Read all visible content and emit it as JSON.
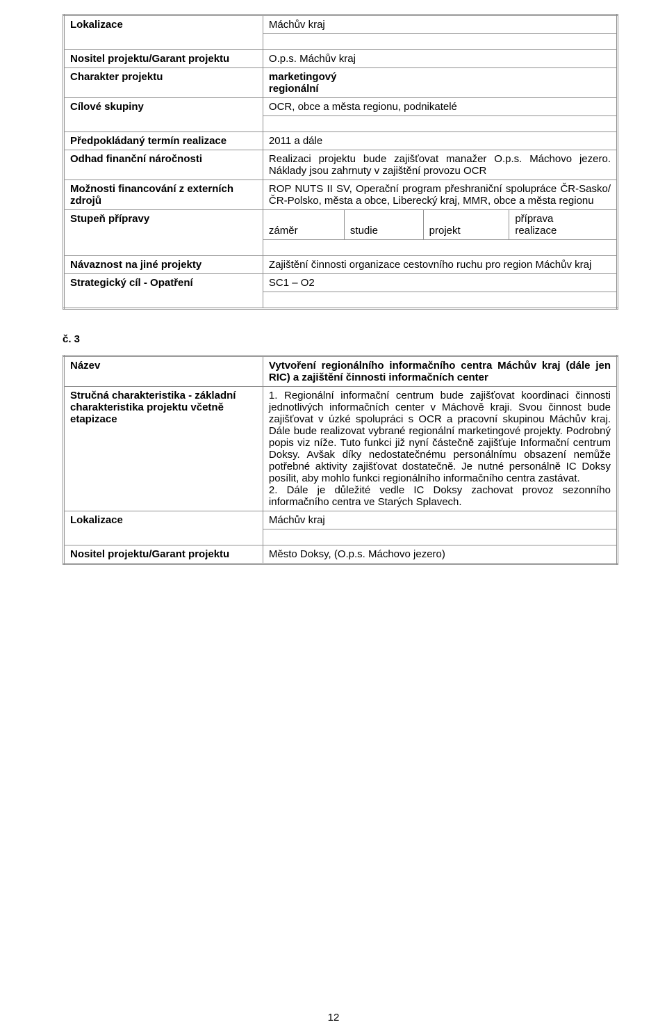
{
  "table1": {
    "rows": [
      {
        "label": "Lokalizace",
        "value": "Máchův kraj"
      },
      {
        "label": "Nositel projektu/Garant projektu",
        "value": "O.p.s. Máchův kraj"
      },
      {
        "label": "Charakter projektu",
        "value": "marketingový\nregionální"
      },
      {
        "label": "Cílové skupiny",
        "value": "OCR, obce a města regionu, podnikatelé"
      },
      {
        "label": "Předpokládaný termín realizace",
        "value": "2011 a dále"
      },
      {
        "label": "Odhad finanční náročnosti",
        "value": "Realizaci projektu bude zajišťovat manažer O.p.s. Máchovo jezero. Náklady jsou zahrnuty v zajištění provozu OCR"
      },
      {
        "label": "Možnosti financování z externích zdrojů",
        "value": "ROP NUTS II SV, Operační program přeshraniční spolupráce ČR-Sasko/ČR-Polsko, města a obce, Liberecký kraj, MMR, obce a města regionu"
      },
      {
        "label": "Stupeň přípravy",
        "columns": [
          "záměr",
          "studie",
          "projekt",
          "příprava\nrealizace"
        ]
      },
      {
        "label": "Návaznost na jiné projekty",
        "value": "Zajištění činnosti organizace cestovního ruchu pro region Máchův kraj"
      },
      {
        "label": "Strategický cíl - Opatření",
        "value": "SC1 – O2"
      }
    ]
  },
  "sectionNumber": "č. 3",
  "table2": {
    "rows": [
      {
        "label": "Název",
        "value": "Vytvoření regionálního informačního centra Máchův kraj (dále jen RIC) a zajištění činnosti informačních center",
        "boldValue": true
      },
      {
        "label": "Stručná charakteristika - základní charakteristika projektu včetně etapizace",
        "value": "1. Regionální informační centrum bude zajišťovat koordinaci činnosti jednotlivých informačních center v Máchově kraji. Svou činnost bude zajišťovat v úzké spolupráci s OCR a pracovní skupinou Máchův kraj. Dále bude realizovat vybrané regionální marketingové projekty. Podrobný popis viz níže. Tuto funkci již nyní částečně zajišťuje Informační centrum Doksy. Avšak díky nedostatečnému personálnímu obsazení nemůže potřebné aktivity zajišťovat dostatečně. Je nutné personálně IC Doksy posílit, aby mohlo funkci regionálního informačního centra zastávat.\n2. Dále je důležité vedle IC Doksy zachovat provoz sezonního informačního centra ve Starých Splavech."
      },
      {
        "label": "Lokalizace",
        "value": "Máchův kraj"
      },
      {
        "label": "Nositel projektu/Garant projektu",
        "value": " Město Doksy, (O.p.s. Máchovo jezero)"
      }
    ]
  },
  "pageNumber": "12"
}
